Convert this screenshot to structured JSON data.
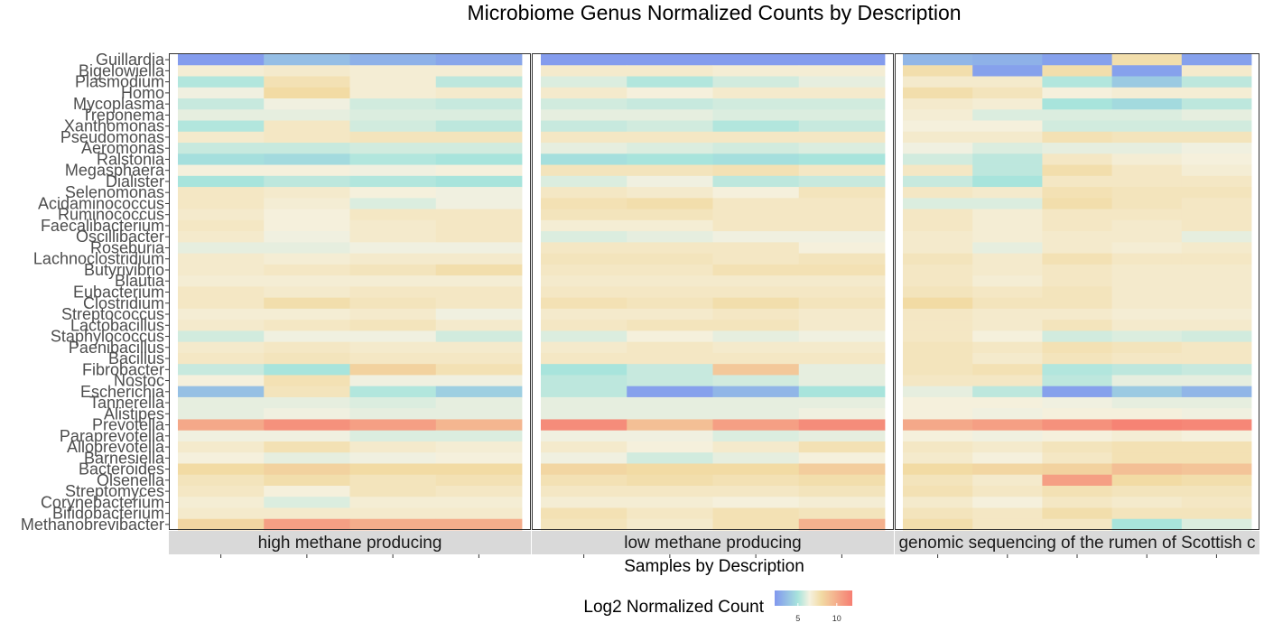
{
  "chart_data": {
    "type": "heatmap",
    "title": "Microbiome Genus Normalized Counts by Description",
    "xlabel": "Samples by Description",
    "legend": {
      "title": "Log2 Normalized Count",
      "ticks": [
        5,
        10
      ],
      "range": [
        2,
        12
      ],
      "placement": "bottom",
      "colors": [
        "#8197ee",
        "#a8e4dc",
        "#f5f1e0",
        "#f2dba4",
        "#f67e72"
      ]
    },
    "genera": [
      "Guillardia",
      "Bigelowiella",
      "Plasmodium",
      "Homo",
      "Mycoplasma",
      "Treponema",
      "Xanthomonas",
      "Pseudomonas",
      "Aeromonas",
      "Ralstonia",
      "Megasphaera",
      "Dialister",
      "Selenomonas",
      "Acidaminococcus",
      "Ruminococcus",
      "Faecalibacterium",
      "Oscillibacter",
      "Roseburia",
      "Lachnoclostridium",
      "Butyrivibrio",
      "Blautia",
      "Eubacterium",
      "Clostridium",
      "Streptococcus",
      "Lactobacillus",
      "Staphylococcus",
      "Paenibacillus",
      "Bacillus",
      "Fibrobacter",
      "Nostoc",
      "Escherichia",
      "Tannerella",
      "Alistipes",
      "Prevotella",
      "Paraprevotella",
      "Alloprevotella",
      "Barnesiella",
      "Bacteroides",
      "Olsenella",
      "Streptomyces",
      "Corynebacterium",
      "Bifidobacterium",
      "Methanobrevibacter"
    ],
    "panels": [
      {
        "label": "high methane producing",
        "values": [
          [
            2.2,
            3.5,
            3.0,
            2.6
          ],
          [
            6.8,
            7.0,
            6.8,
            6.8
          ],
          [
            5.2,
            7.6,
            6.8,
            5.4
          ],
          [
            6.4,
            8.0,
            6.8,
            7.0
          ],
          [
            5.6,
            6.4,
            5.8,
            5.6
          ],
          [
            6.2,
            6.2,
            6.0,
            6.0
          ],
          [
            5.2,
            7.2,
            5.8,
            5.4
          ],
          [
            7.0,
            7.2,
            7.4,
            7.4
          ],
          [
            5.6,
            5.6,
            5.8,
            5.8
          ],
          [
            4.8,
            4.6,
            5.2,
            5.0
          ],
          [
            6.6,
            6.6,
            6.4,
            6.6
          ],
          [
            5.0,
            5.4,
            5.2,
            5.0
          ],
          [
            7.2,
            7.0,
            6.6,
            6.4
          ],
          [
            7.2,
            6.8,
            6.0,
            6.4
          ],
          [
            7.0,
            6.6,
            7.2,
            7.2
          ],
          [
            7.2,
            6.6,
            7.0,
            7.2
          ],
          [
            7.0,
            6.4,
            7.0,
            7.2
          ],
          [
            6.2,
            6.2,
            6.4,
            6.4
          ],
          [
            7.0,
            6.8,
            7.0,
            7.0
          ],
          [
            7.0,
            7.2,
            7.4,
            7.8
          ],
          [
            6.8,
            6.8,
            6.8,
            6.8
          ],
          [
            7.2,
            7.0,
            7.2,
            7.2
          ],
          [
            7.2,
            7.8,
            7.4,
            7.2
          ],
          [
            6.8,
            6.8,
            7.0,
            6.4
          ],
          [
            7.0,
            7.2,
            7.4,
            7.0
          ],
          [
            5.8,
            6.4,
            6.4,
            5.8
          ],
          [
            7.0,
            7.2,
            7.0,
            7.0
          ],
          [
            7.2,
            7.4,
            7.2,
            7.2
          ],
          [
            5.6,
            5.0,
            8.4,
            7.6
          ],
          [
            6.6,
            7.6,
            6.4,
            6.4
          ],
          [
            3.6,
            7.4,
            5.2,
            4.2
          ],
          [
            6.2,
            6.2,
            6.0,
            6.2
          ],
          [
            6.2,
            6.4,
            6.2,
            6.2
          ],
          [
            10.2,
            11.2,
            10.6,
            9.6
          ],
          [
            6.4,
            6.4,
            6.0,
            6.0
          ],
          [
            7.0,
            7.6,
            7.0,
            6.8
          ],
          [
            6.6,
            6.2,
            6.4,
            6.6
          ],
          [
            8.0,
            8.4,
            8.0,
            8.0
          ],
          [
            7.4,
            7.8,
            7.4,
            7.6
          ],
          [
            7.2,
            6.6,
            7.4,
            7.2
          ],
          [
            6.8,
            6.0,
            6.8,
            6.8
          ],
          [
            7.0,
            7.0,
            7.0,
            7.0
          ],
          [
            8.2,
            10.6,
            10.0,
            10.0
          ]
        ]
      },
      {
        "label": "low methane producing",
        "values": [
          [
            2.2,
            2.2,
            2.2,
            2.2
          ],
          [
            7.0,
            7.0,
            6.8,
            6.8
          ],
          [
            6.0,
            5.2,
            5.8,
            6.2
          ],
          [
            7.0,
            6.6,
            7.0,
            7.0
          ],
          [
            5.8,
            5.6,
            5.8,
            5.8
          ],
          [
            6.2,
            6.2,
            6.0,
            6.0
          ],
          [
            5.6,
            5.8,
            5.2,
            5.6
          ],
          [
            7.2,
            7.2,
            7.2,
            7.2
          ],
          [
            6.2,
            6.0,
            5.8,
            6.0
          ],
          [
            4.8,
            5.0,
            4.8,
            5.0
          ],
          [
            7.4,
            7.4,
            7.6,
            7.2
          ],
          [
            6.0,
            6.4,
            5.4,
            5.6
          ],
          [
            7.2,
            7.0,
            6.6,
            7.4
          ],
          [
            7.6,
            7.8,
            7.2,
            7.2
          ],
          [
            7.4,
            7.4,
            7.2,
            7.2
          ],
          [
            6.8,
            6.8,
            7.2,
            7.2
          ],
          [
            6.0,
            6.2,
            6.4,
            6.4
          ],
          [
            7.2,
            7.2,
            7.2,
            6.6
          ],
          [
            7.4,
            7.4,
            7.2,
            7.4
          ],
          [
            7.2,
            7.2,
            7.6,
            7.6
          ],
          [
            7.0,
            7.0,
            7.0,
            7.0
          ],
          [
            7.2,
            7.2,
            7.2,
            7.2
          ],
          [
            7.6,
            7.4,
            7.8,
            7.4
          ],
          [
            7.0,
            7.0,
            7.2,
            7.0
          ],
          [
            7.2,
            7.4,
            7.4,
            7.0
          ],
          [
            6.0,
            6.6,
            6.2,
            6.4
          ],
          [
            7.0,
            7.2,
            7.0,
            7.0
          ],
          [
            7.2,
            7.2,
            7.2,
            7.2
          ],
          [
            5.0,
            5.6,
            8.8,
            6.2
          ],
          [
            5.4,
            5.6,
            5.8,
            6.2
          ],
          [
            5.4,
            2.4,
            3.2,
            5.0
          ],
          [
            6.2,
            6.2,
            6.2,
            6.2
          ],
          [
            6.2,
            6.2,
            6.2,
            6.4
          ],
          [
            11.4,
            9.2,
            10.6,
            11.4
          ],
          [
            6.4,
            6.4,
            6.0,
            6.2
          ],
          [
            7.0,
            6.6,
            7.0,
            7.6
          ],
          [
            6.4,
            5.8,
            6.2,
            6.6
          ],
          [
            8.2,
            8.0,
            8.0,
            8.6
          ],
          [
            7.6,
            7.8,
            7.6,
            7.8
          ],
          [
            7.2,
            7.2,
            7.2,
            7.4
          ],
          [
            6.8,
            6.8,
            6.6,
            6.8
          ],
          [
            7.6,
            7.2,
            7.6,
            7.4
          ],
          [
            7.4,
            7.0,
            7.6,
            9.8
          ]
        ]
      },
      {
        "label": "genomic sequencing of the rumen of Scottish c",
        "values": [
          [
            3.2,
            3.0,
            2.4,
            7.8,
            2.4
          ],
          [
            7.8,
            2.4,
            7.8,
            2.4,
            7.0
          ],
          [
            7.0,
            7.0,
            5.2,
            4.0,
            5.4
          ],
          [
            7.8,
            7.4,
            6.6,
            6.8,
            6.8
          ],
          [
            7.0,
            6.8,
            5.0,
            4.6,
            5.4
          ],
          [
            6.8,
            6.0,
            6.0,
            6.0,
            6.2
          ],
          [
            6.6,
            6.6,
            5.8,
            5.8,
            5.8
          ],
          [
            7.0,
            7.0,
            7.6,
            7.4,
            7.4
          ],
          [
            6.4,
            6.0,
            6.2,
            6.2,
            6.4
          ],
          [
            5.8,
            5.4,
            7.2,
            6.8,
            6.6
          ],
          [
            7.2,
            5.4,
            7.8,
            7.2,
            6.8
          ],
          [
            5.6,
            5.0,
            7.2,
            7.2,
            7.2
          ],
          [
            7.2,
            7.0,
            7.6,
            7.4,
            7.4
          ],
          [
            6.0,
            6.0,
            7.8,
            7.4,
            7.2
          ],
          [
            7.2,
            6.8,
            7.2,
            7.2,
            7.2
          ],
          [
            7.2,
            6.8,
            7.2,
            7.0,
            7.2
          ],
          [
            7.0,
            6.8,
            7.0,
            7.0,
            6.2
          ],
          [
            7.0,
            6.2,
            7.0,
            6.8,
            7.0
          ],
          [
            7.4,
            7.0,
            7.6,
            7.2,
            7.2
          ],
          [
            7.2,
            7.0,
            7.2,
            7.0,
            7.0
          ],
          [
            7.2,
            6.8,
            7.2,
            7.0,
            7.0
          ],
          [
            7.4,
            7.2,
            7.4,
            7.0,
            7.0
          ],
          [
            8.0,
            7.4,
            7.4,
            7.0,
            7.0
          ],
          [
            7.2,
            7.0,
            7.0,
            6.8,
            6.8
          ],
          [
            7.2,
            7.0,
            7.4,
            7.0,
            7.0
          ],
          [
            7.2,
            6.6,
            5.8,
            6.0,
            5.8
          ],
          [
            7.4,
            7.2,
            7.6,
            7.4,
            7.2
          ],
          [
            7.4,
            7.0,
            7.4,
            7.2,
            7.2
          ],
          [
            7.4,
            7.6,
            5.2,
            5.4,
            5.6
          ],
          [
            7.2,
            7.2,
            5.4,
            6.2,
            6.2
          ],
          [
            6.2,
            5.4,
            2.4,
            4.0,
            3.2
          ],
          [
            6.6,
            6.6,
            6.4,
            6.2,
            6.2
          ],
          [
            6.6,
            6.4,
            6.6,
            6.6,
            6.4
          ],
          [
            10.2,
            10.6,
            11.2,
            11.8,
            11.6
          ],
          [
            6.6,
            6.4,
            6.6,
            6.8,
            6.6
          ],
          [
            7.2,
            7.0,
            7.4,
            7.6,
            7.6
          ],
          [
            7.0,
            6.6,
            7.2,
            7.6,
            7.6
          ],
          [
            8.0,
            8.2,
            8.4,
            9.2,
            9.0
          ],
          [
            7.4,
            7.0,
            10.6,
            8.0,
            7.8
          ],
          [
            7.6,
            7.2,
            7.6,
            7.4,
            7.4
          ],
          [
            7.0,
            6.6,
            7.2,
            7.0,
            7.2
          ],
          [
            7.4,
            7.2,
            7.8,
            7.4,
            7.4
          ],
          [
            7.8,
            7.2,
            7.2,
            5.0,
            6.0
          ]
        ]
      }
    ]
  }
}
